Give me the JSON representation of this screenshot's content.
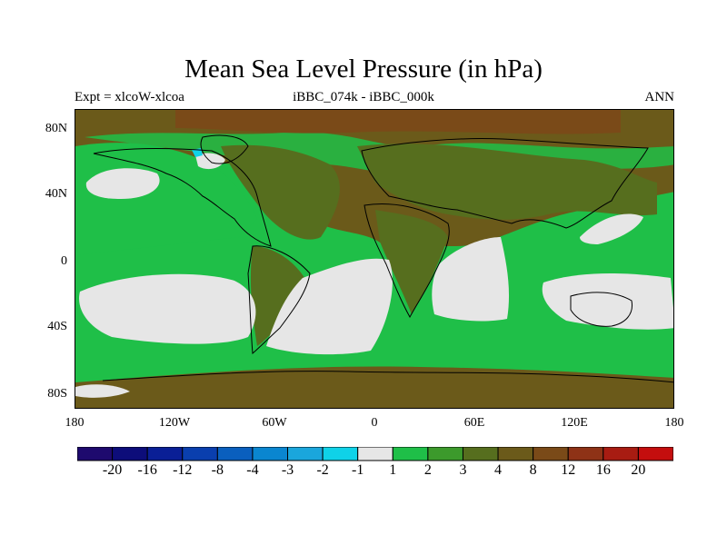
{
  "title": "Mean Sea Level Pressure (in hPa)",
  "subtitle_left": "Expt = xlcoW-xlcoa",
  "subtitle_center": "iBBC_074k - iBBC_000k",
  "subtitle_right": "ANN",
  "lat_ticks": [
    "80N",
    "40N",
    "0",
    "40S",
    "80S"
  ],
  "lon_ticks": [
    "180",
    "120W",
    "60W",
    "0",
    "60E",
    "120E",
    "180"
  ],
  "colorbar": {
    "labels": [
      "-20",
      "-16",
      "-12",
      "-8",
      "-4",
      "-3",
      "-2",
      "-1",
      "1",
      "2",
      "3",
      "4",
      "8",
      "12",
      "16",
      "20"
    ],
    "colors": [
      "#1e0a6e",
      "#0d0d7a",
      "#0a1f96",
      "#0a3fae",
      "#0a5fbe",
      "#0a86d0",
      "#1aa6dc",
      "#0fd2e8",
      "#e6e6e6",
      "#1fbf48",
      "#3c9a2c",
      "#566e1e",
      "#6b5a1a",
      "#7a4a18",
      "#8e3216",
      "#a81c12",
      "#c40e0e"
    ]
  }
}
